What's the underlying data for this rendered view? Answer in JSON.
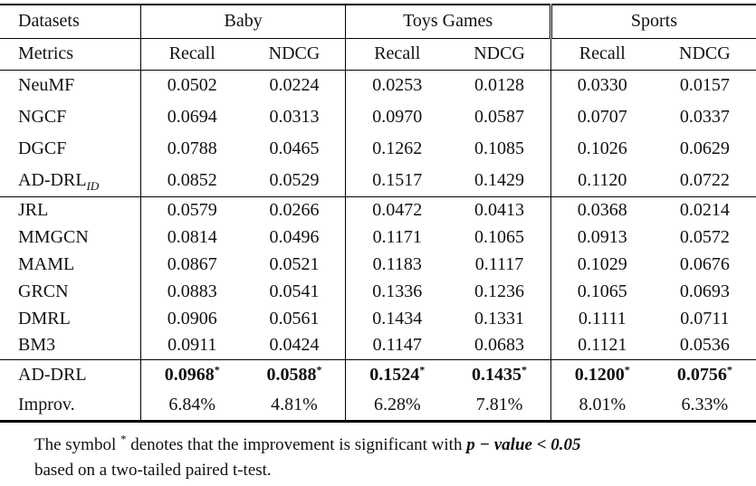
{
  "table": {
    "star_symbol": "*",
    "header": {
      "datasets_label": "Datasets",
      "metrics_label": "Metrics",
      "groups": [
        {
          "label": "Baby"
        },
        {
          "label": "Toys Games"
        },
        {
          "label": "Sports"
        }
      ],
      "metric_cols": [
        "Recall",
        "NDCG"
      ]
    },
    "sections": [
      {
        "rows": [
          {
            "name": "NeuMF",
            "values": [
              "0.0502",
              "0.0224",
              "0.0253",
              "0.0128",
              "0.0330",
              "0.0157"
            ]
          },
          {
            "name": "NGCF",
            "values": [
              "0.0694",
              "0.0313",
              "0.0970",
              "0.0587",
              "0.0707",
              "0.0337"
            ]
          },
          {
            "name": "DGCF",
            "values": [
              "0.0788",
              "0.0465",
              "0.1262",
              "0.1085",
              "0.1026",
              "0.0629"
            ]
          },
          {
            "name": "AD-DRL",
            "name_sub": "ID",
            "values": [
              "0.0852",
              "0.0529",
              "0.1517",
              "0.1429",
              "0.1120",
              "0.0722"
            ]
          }
        ]
      },
      {
        "rows": [
          {
            "name": "JRL",
            "values": [
              "0.0579",
              "0.0266",
              "0.0472",
              "0.0413",
              "0.0368",
              "0.0214"
            ]
          },
          {
            "name": "MMGCN",
            "values": [
              "0.0814",
              "0.0496",
              "0.1171",
              "0.1065",
              "0.0913",
              "0.0572"
            ]
          },
          {
            "name": "MAML",
            "values": [
              "0.0867",
              "0.0521",
              "0.1183",
              "0.1117",
              "0.1029",
              "0.0676"
            ]
          },
          {
            "name": "GRCN",
            "values": [
              "0.0883",
              "0.0541",
              "0.1336",
              "0.1236",
              "0.1065",
              "0.0693"
            ]
          },
          {
            "name": "DMRL",
            "values": [
              "0.0906",
              "0.0561",
              "0.1434",
              "0.1331",
              "0.1111",
              "0.0711"
            ]
          },
          {
            "name": "BM3",
            "values": [
              "0.0911",
              "0.0424",
              "0.1147",
              "0.0683",
              "0.1121",
              "0.0536"
            ]
          }
        ]
      },
      {
        "rows": [
          {
            "name": "AD-DRL",
            "bold": true,
            "starred": true,
            "values": [
              "0.0968",
              "0.0588",
              "0.1524",
              "0.1435",
              "0.1200",
              "0.0756"
            ]
          },
          {
            "name": "Improv.",
            "values": [
              "6.84%",
              "4.81%",
              "6.28%",
              "7.81%",
              "8.01%",
              "6.33%"
            ]
          }
        ]
      }
    ]
  },
  "footnote": {
    "line1_prefix": "The symbol ",
    "symbol": "*",
    "line1_middle": " denotes that the improvement is significant with ",
    "line1_math": "p − value < 0.05",
    "line2": "based on a two-tailed paired t-test."
  }
}
